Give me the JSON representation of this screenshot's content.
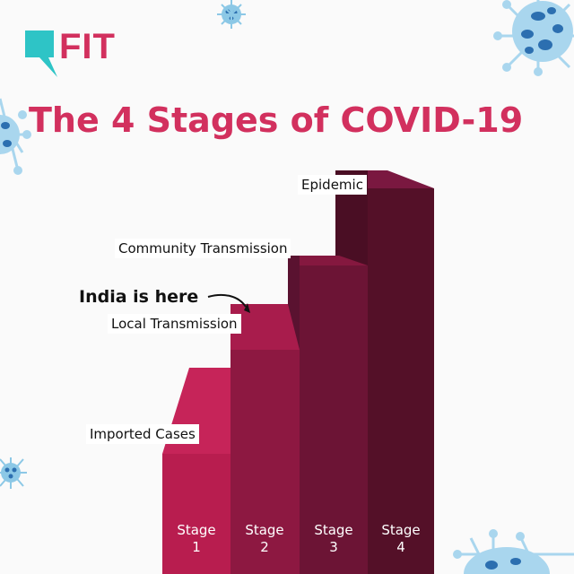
{
  "brand": {
    "logo_text": "FIT"
  },
  "title": "The 4 Stages of COVID-19",
  "stages": [
    {
      "label": "Imported Cases",
      "stage_word": "Stage",
      "number": "1"
    },
    {
      "label": "Local Transmission",
      "stage_word": "Stage",
      "number": "2"
    },
    {
      "label": "Community Transmission",
      "stage_word": "Stage",
      "number": "3"
    },
    {
      "label": "Epidemic",
      "stage_word": "Stage",
      "number": "4"
    }
  ],
  "annotation": {
    "text": "India is here"
  },
  "colors": {
    "accent": "#d2305e",
    "logo_teal": "#2ec4c6",
    "stage1": "#b81d4f",
    "stage2": "#8d1841",
    "stage3": "#6c1435",
    "stage4": "#541028",
    "virus": "#7fc3e3"
  }
}
